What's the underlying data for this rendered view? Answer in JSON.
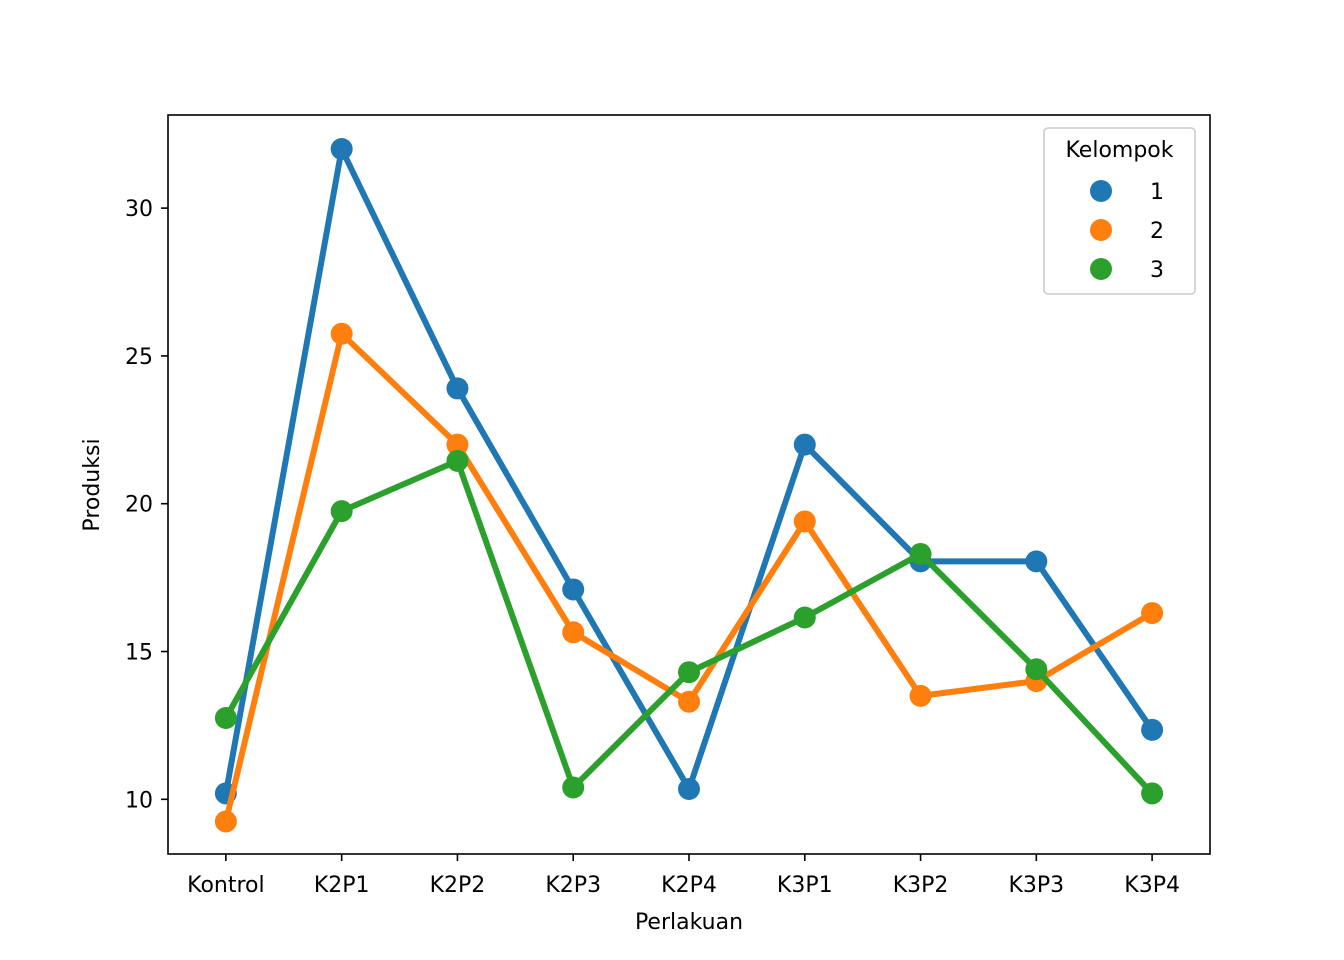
{
  "chart_data": {
    "type": "line",
    "title": "",
    "xlabel": "Perlakuan",
    "ylabel": "Produksi",
    "categories": [
      "Kontrol",
      "K2P1",
      "K2P2",
      "K2P3",
      "K2P4",
      "K3P1",
      "K3P2",
      "K3P3",
      "K3P4"
    ],
    "yticks": [
      10,
      15,
      20,
      25,
      30
    ],
    "ylim": [
      8.15,
      33.15
    ],
    "grid": false,
    "legend": {
      "title": "Kelompok",
      "placement": "top-right"
    },
    "series": [
      {
        "name": "1",
        "color": "#1f77b4",
        "values": [
          10.2,
          32.0,
          23.9,
          17.1,
          10.35,
          22.0,
          18.05,
          18.05,
          12.35
        ]
      },
      {
        "name": "2",
        "color": "#ff7f0e",
        "values": [
          9.25,
          25.75,
          22.0,
          15.65,
          13.3,
          19.4,
          13.5,
          14.0,
          16.3
        ]
      },
      {
        "name": "3",
        "color": "#2ca02c",
        "values": [
          12.75,
          19.75,
          21.45,
          10.4,
          14.3,
          16.15,
          18.3,
          14.4,
          10.2
        ]
      }
    ]
  }
}
